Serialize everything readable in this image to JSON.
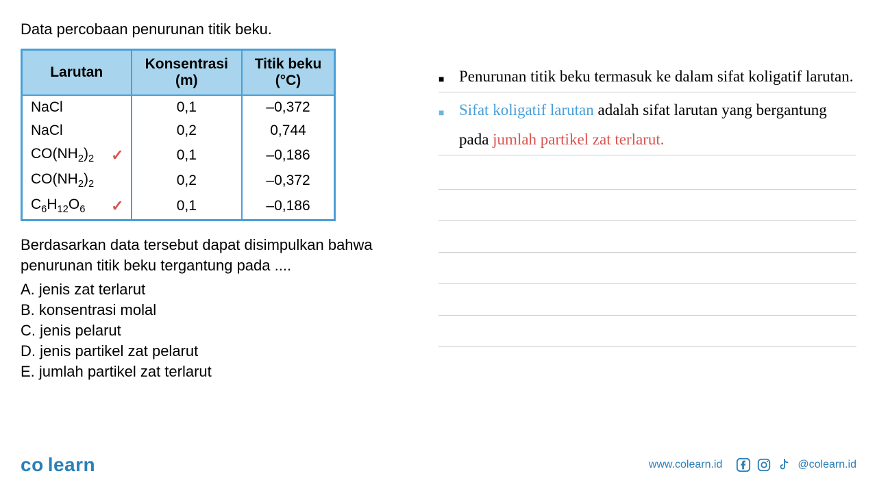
{
  "intro": "Data percobaan penurunan titik beku.",
  "table": {
    "headers": {
      "col1": "Larutan",
      "col2_line1": "Konsentrasi",
      "col2_line2": "(m)",
      "col3_line1": "Titik beku",
      "col3_line2": "(°C)"
    },
    "row0": {
      "larutan_html": "NaCl",
      "konsentrasi": "0,1",
      "titik": "–0,372",
      "check": false
    },
    "row1": {
      "larutan_html": "NaCl",
      "konsentrasi": "0,2",
      "titik": "0,744",
      "check": false
    },
    "row2": {
      "larutan_html": "CO(NH<sub>2</sub>)<sub>2</sub>",
      "konsentrasi": "0,1",
      "titik": "–0,186",
      "check": true
    },
    "row3": {
      "larutan_html": "CO(NH<sub>2</sub>)<sub>2</sub>",
      "konsentrasi": "0,2",
      "titik": "–0,372",
      "check": false
    },
    "row4": {
      "larutan_html": "C<sub>6</sub>H<sub>12</sub>O<sub>6</sub>",
      "konsentrasi": "0,1",
      "titik": "–0,186",
      "check": true
    }
  },
  "question": "Berdasarkan data tersebut dapat disimpulkan bahwa penurunan titik beku tergantung pada ....",
  "options": {
    "a": "A. jenis zat terlarut",
    "b": "B. konsentrasi molal",
    "c": "C. jenis pelarut",
    "d": "D. jenis partikel zat pelarut",
    "e": "E. jumlah partikel zat terlarut"
  },
  "bullets": {
    "b0": {
      "marker": "■",
      "marker_color": "#000",
      "text": "Penurunan titik beku termasuk ke dalam sifat koligatif larutan."
    },
    "b1": {
      "marker": "■",
      "marker_color": "#6bb5e0",
      "prefix_blue": "Sifat koligatif larutan ",
      "mid": "adalah sifat larutan yang bergantung pada ",
      "suffix_red": "jumlah partikel zat terlarut."
    }
  },
  "colors": {
    "table_border": "#4a9fd8",
    "table_header_bg": "#a8d5ed",
    "check_color": "#d9534f",
    "link_blue": "#4a9fd8",
    "highlight_red": "#d9534f",
    "brand_blue": "#2a7fb8",
    "line_color": "#ccc"
  },
  "footer": {
    "logo_co": "co",
    "logo_learn": "learn",
    "website": "www.colearn.id",
    "handle": "@colearn.id"
  }
}
